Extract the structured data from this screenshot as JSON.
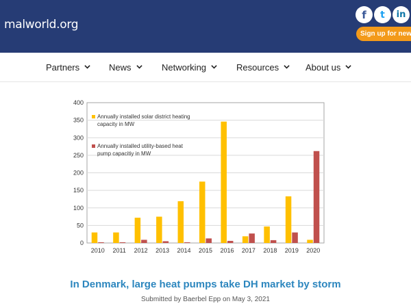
{
  "header": {
    "logo_text": "malworld.org",
    "social": {
      "facebook": "f",
      "twitter": "t",
      "linkedin": "in"
    },
    "signup_label": "Sign up for newsletter"
  },
  "nav": {
    "items": [
      {
        "label": "Partners"
      },
      {
        "label": "News"
      },
      {
        "label": "Networking"
      },
      {
        "label": "Resources"
      },
      {
        "label": "About us"
      }
    ]
  },
  "article": {
    "title": "In Denmark, large heat pumps take DH market by storm",
    "byline": "Submitted by Baerbel Epp on May 3, 2021"
  },
  "chart_data": {
    "type": "bar",
    "categories": [
      "2010",
      "2011",
      "2012",
      "2013",
      "2014",
      "2015",
      "2016",
      "2017",
      "2018",
      "2019",
      "2020"
    ],
    "series": [
      {
        "name": "Annually installed solar district heating capacity in MW",
        "color": "#ffc000",
        "values": [
          30,
          30,
          72,
          75,
          119,
          175,
          346,
          19,
          47,
          133,
          9
        ]
      },
      {
        "name": "Annually installed utility-based heat pump capacitiy in MW",
        "color": "#c0504d",
        "values": [
          2,
          2,
          9,
          5,
          2,
          13,
          6,
          27,
          8,
          30,
          262
        ]
      }
    ],
    "legend": [
      {
        "line1": "Annually installed solar district heating",
        "line2": "capacity in MW"
      },
      {
        "line1": "Annually installed utility-based heat",
        "line2": "pump capacitiy in MW"
      }
    ],
    "yticks": [
      0,
      50,
      100,
      150,
      200,
      250,
      300,
      350,
      400
    ],
    "ylim": [
      0,
      400
    ],
    "title": "",
    "xlabel": "",
    "ylabel": ""
  }
}
